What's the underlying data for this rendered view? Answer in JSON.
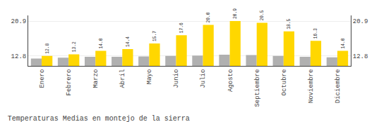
{
  "chart_data": {
    "type": "bar",
    "title": "Temperaturas Medias en montejo de la sierra",
    "categories": [
      "Enero",
      "Febrero",
      "Marzo",
      "Abril",
      "Mayo",
      "Junio",
      "Julio",
      "Agosto",
      "Septiembre",
      "Octubre",
      "Noviembre",
      "Diciembre"
    ],
    "series": [
      {
        "color": "#B0B0B0",
        "values": [
          12.2,
          12.4,
          12.6,
          12.6,
          12.7,
          12.8,
          12.9,
          13.1,
          13.0,
          12.8,
          12.6,
          12.5
        ]
      },
      {
        "color": "#FFD700",
        "values": [
          12.8,
          13.2,
          14.0,
          14.4,
          15.7,
          17.6,
          20.0,
          20.9,
          20.5,
          18.5,
          16.3,
          14.0
        ],
        "data_labels": true,
        "value_labels": [
          "12.8",
          "13.2",
          "14.0",
          "14.4",
          "15.7",
          "17.6",
          "20.0",
          "20.9",
          "20.5",
          "18.5",
          "16.3",
          "14.0"
        ]
      }
    ],
    "ylim": [
      10.5,
      22.2
    ],
    "yticks": [
      12.8,
      20.9
    ],
    "y2lim": [
      10.5,
      22.2
    ],
    "y2ticks": [
      12.8,
      20.9
    ],
    "grid": true
  }
}
